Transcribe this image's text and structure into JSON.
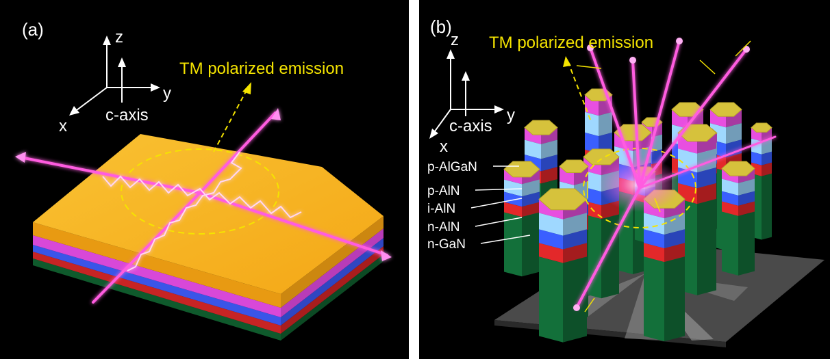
{
  "panel_a": {
    "label": "(a)",
    "emission_label": "TM polarized emission",
    "axes": {
      "z": "z",
      "y": "y",
      "x": "x",
      "c_axis": "c-axis"
    }
  },
  "panel_b": {
    "label": "(b)",
    "emission_label": "TM polarized emission",
    "axes": {
      "z": "z",
      "y": "y",
      "x": "x",
      "c_axis": "c-axis"
    },
    "layers": [
      "p-AlGaN",
      "p-AlN",
      "i-AlN",
      "n-AlN",
      "n-GaN"
    ]
  },
  "colors": {
    "background": "#000000",
    "label_yellow": "#f5e400",
    "slab_top": "#f7b21e",
    "layer_magenta": "#e84fe0",
    "layer_blue": "#3a5fff",
    "layer_red": "#e3282a",
    "layer_green": "#13703a",
    "beam_pink": "#ff5ce0"
  }
}
